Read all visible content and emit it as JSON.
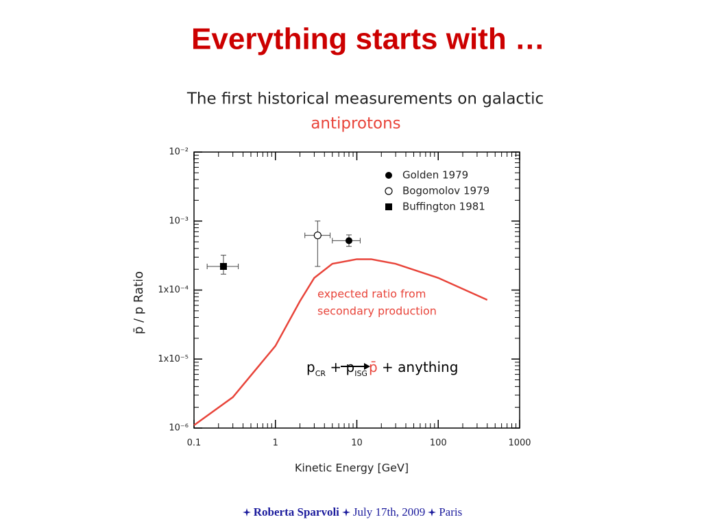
{
  "slide": {
    "title": "Everything starts with …",
    "footer": {
      "author": "Roberta Sparvoli",
      "date": "July 17th, 2009",
      "place": "Paris"
    }
  },
  "chart_data": {
    "type": "scatter",
    "title": "The first historical measurements on galactic",
    "subtitle": "antiprotons",
    "x_label": "Kinetic Energy [GeV]",
    "y_label": "p̄ / p  Ratio",
    "x_scale": "log",
    "y_scale": "log",
    "xlim": [
      0.1,
      1000
    ],
    "xticks": [
      0.1,
      1,
      10,
      100,
      1000
    ],
    "ylim": [
      1e-06,
      0.01
    ],
    "yticks": [
      {
        "value": 1e-06,
        "label": "10⁻⁶"
      },
      {
        "value": 1e-05,
        "label": "1x10⁻⁵"
      },
      {
        "value": 0.0001,
        "label": "1x10⁻⁴"
      },
      {
        "value": 0.001,
        "label": "10⁻³"
      },
      {
        "value": 0.01,
        "label": "10⁻²"
      }
    ],
    "legend": "upper right",
    "series": [
      {
        "name": "Golden 1979",
        "color": "#000000",
        "marker": "circle",
        "x": [
          8
        ],
        "values": [
          0.00052
        ],
        "x_low": [
          5
        ],
        "x_high": [
          11
        ],
        "y_low": [
          0.00043
        ],
        "y_high": [
          0.00063
        ]
      },
      {
        "name": "Bogomolov 1979",
        "color": "#000000",
        "marker": "open-circle",
        "x": [
          3.3
        ],
        "values": [
          0.00062
        ],
        "x_low": [
          2.3
        ],
        "x_high": [
          4.7
        ],
        "y_low": [
          0.00022
        ],
        "y_high": [
          0.001
        ]
      },
      {
        "name": "Buffington 1981",
        "color": "#000000",
        "marker": "square",
        "x": [
          0.23
        ],
        "values": [
          0.00022
        ],
        "x_low": [
          0.145
        ],
        "x_high": [
          0.35
        ],
        "y_low": [
          0.00017
        ],
        "y_high": [
          0.00032
        ]
      }
    ],
    "curve": {
      "color": "#e8443a",
      "x": [
        0.1,
        0.3,
        1,
        2,
        3,
        5,
        10,
        15,
        30,
        100,
        400
      ],
      "values": [
        1.1e-06,
        2.8e-06,
        1.55e-05,
        6.9e-05,
        0.00015,
        0.00024,
        0.00028,
        0.00028,
        0.00024,
        0.00015,
        7.2e-05
      ]
    },
    "annotations": [
      {
        "lines": [
          "expected ratio from",
          "secondary production"
        ],
        "color": "#e8443a"
      }
    ],
    "reaction": {
      "lhs": [
        {
          "text": "p",
          "sub": "CR"
        },
        {
          "text": " + p",
          "sub": "ISG"
        }
      ],
      "rhs": [
        {
          "text": "p̄",
          "color": "#e8443a"
        },
        {
          "text": " + anything",
          "color": "#000000"
        }
      ]
    }
  }
}
